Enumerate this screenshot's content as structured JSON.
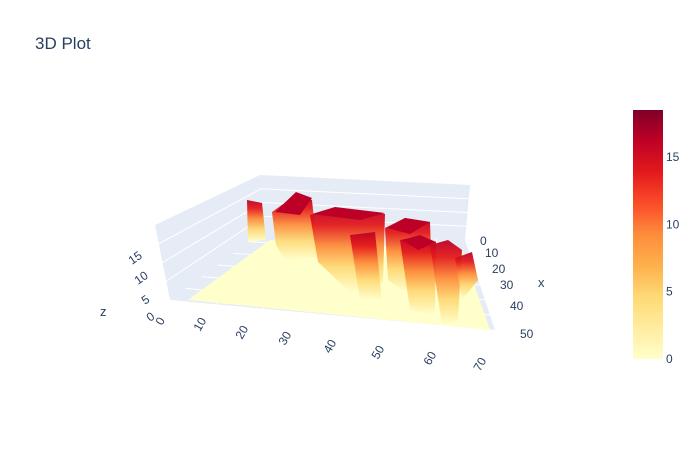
{
  "chart_data": {
    "type": "surface",
    "title": "3D Plot",
    "colorscale": "YlOrRd",
    "colorscale_stops": [
      "#ffffcc",
      "#ffeda0",
      "#fed976",
      "#feb24c",
      "#fd8d3c",
      "#fc4e2a",
      "#e31a1c",
      "#bd0026",
      "#800026"
    ],
    "axes": {
      "x": {
        "title": "x",
        "range": [
          0,
          55
        ],
        "ticks": [
          "0",
          "10",
          "20",
          "30",
          "40",
          "50"
        ]
      },
      "y": {
        "title": "",
        "range": [
          0,
          70
        ],
        "ticks": [
          "0",
          "10",
          "20",
          "30",
          "40",
          "50",
          "60",
          "70"
        ]
      },
      "z": {
        "title": "z",
        "range": [
          0,
          18
        ],
        "ticks": [
          "0",
          "5",
          "10",
          "15"
        ]
      }
    },
    "colorbar": {
      "range": [
        0,
        18.5
      ],
      "ticks": [
        "0",
        "5",
        "10",
        "15"
      ]
    },
    "shape_description": "flat base at z=0 with raised blocks roughly 8-18 high in the back-right region (x approx 0-30, y approx 15-65)"
  }
}
